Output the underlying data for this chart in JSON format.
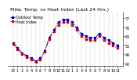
{
  "title": "Milw. Temp. vs Heat Index (Last 24 Hrs.)",
  "legend_labels": [
    "Outdoor Temp",
    "Heat Index"
  ],
  "line_colors": [
    "#0000cc",
    "#cc0000"
  ],
  "line_styles": [
    "-.",
    ":"
  ],
  "marker_styles": [
    "s",
    "s"
  ],
  "marker_sizes": [
    1.5,
    1.5
  ],
  "background_color": "#ffffff",
  "grid_color": "#999999",
  "x_values": [
    0,
    1,
    2,
    3,
    4,
    5,
    6,
    7,
    8,
    9,
    10,
    11,
    12,
    13,
    14,
    15,
    16,
    17,
    18,
    19,
    20,
    21,
    22,
    23
  ],
  "temp_values": [
    58,
    54,
    50,
    48,
    46,
    44,
    46,
    52,
    62,
    68,
    74,
    76,
    76,
    74,
    70,
    65,
    63,
    62,
    62,
    65,
    62,
    60,
    58,
    56
  ],
  "heat_values": [
    57,
    53,
    49,
    47,
    45,
    43,
    45,
    51,
    61,
    67,
    72,
    74,
    74,
    72,
    68,
    63,
    61,
    60,
    60,
    63,
    60,
    58,
    56,
    54
  ],
  "ylim": [
    40,
    82
  ],
  "yticks": [
    42,
    49,
    56,
    63,
    70,
    77
  ],
  "xtick_labels": [
    "12",
    "1",
    "2",
    "3",
    "4",
    "5",
    "6",
    "7",
    "8",
    "9",
    "10",
    "11",
    "12",
    "1",
    "2",
    "3",
    "4",
    "5",
    "6",
    "7",
    "8",
    "9",
    "10",
    "11"
  ],
  "title_fontsize": 4.5,
  "tick_fontsize": 3.5,
  "legend_fontsize": 3.5,
  "line_width": 0.7
}
